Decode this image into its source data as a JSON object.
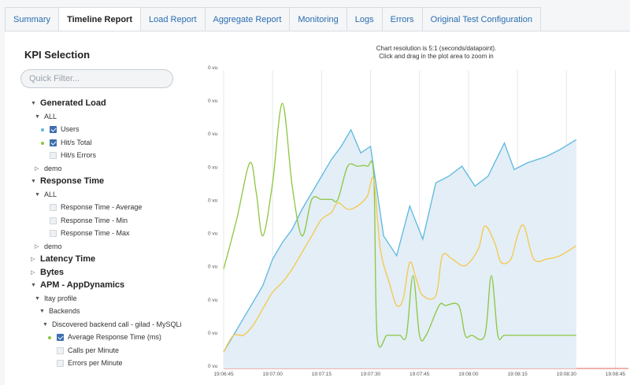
{
  "tabs": [
    {
      "label": "Summary",
      "active": false
    },
    {
      "label": "Timeline Report",
      "active": true
    },
    {
      "label": "Load Report",
      "active": false
    },
    {
      "label": "Aggregate Report",
      "active": false
    },
    {
      "label": "Monitoring",
      "active": false
    },
    {
      "label": "Logs",
      "active": false
    },
    {
      "label": "Errors",
      "active": false
    },
    {
      "label": "Original Test Configuration",
      "active": false
    }
  ],
  "sidebar": {
    "title": "KPI Selection",
    "filter_placeholder": "Quick Filter...",
    "tree": [
      {
        "label": "Generated Load",
        "level": 0,
        "kind": "group",
        "expanded": true
      },
      {
        "label": "ALL",
        "level": 1,
        "kind": "group",
        "expanded": true
      },
      {
        "label": "Users",
        "level": 2,
        "kind": "item",
        "checked": true,
        "dot": "#5bb8e0"
      },
      {
        "label": "Hit/s Total",
        "level": 2,
        "kind": "item",
        "checked": true,
        "dot": "#8cc63f"
      },
      {
        "label": "Hit/s Errors",
        "level": 2,
        "kind": "item",
        "checked": false
      },
      {
        "label": "demo",
        "level": 1,
        "kind": "group",
        "expanded": false
      },
      {
        "label": "Response Time",
        "level": 0,
        "kind": "group",
        "expanded": true
      },
      {
        "label": "ALL",
        "level": 1,
        "kind": "group",
        "expanded": true
      },
      {
        "label": "Response Time - Average",
        "level": 2,
        "kind": "item",
        "checked": false
      },
      {
        "label": "Response Time - Min",
        "level": 2,
        "kind": "item",
        "checked": false
      },
      {
        "label": "Response Time - Max",
        "level": 2,
        "kind": "item",
        "checked": false
      },
      {
        "label": "demo",
        "level": 1,
        "kind": "group",
        "expanded": false
      },
      {
        "label": "Latency Time",
        "level": 0,
        "kind": "group",
        "expanded": false
      },
      {
        "label": "Bytes",
        "level": 0,
        "kind": "group",
        "expanded": false
      },
      {
        "label": "APM - AppDynamics",
        "level": 0,
        "kind": "group",
        "expanded": true
      },
      {
        "label": "Itay profile",
        "level": 1,
        "kind": "group",
        "expanded": true
      },
      {
        "label": "Backends",
        "level": 2,
        "kind": "group",
        "expanded": true
      },
      {
        "label": "Discovered backend call - gilad - MySQLi",
        "level": 3,
        "kind": "group",
        "expanded": true
      },
      {
        "label": "Average Response Time (ms)",
        "level": 4,
        "kind": "item",
        "checked": true,
        "dot": "#8cc63f"
      },
      {
        "label": "Calls per Minute",
        "level": 4,
        "kind": "item",
        "checked": false
      },
      {
        "label": "Errors per Minute",
        "level": 4,
        "kind": "item",
        "checked": false
      }
    ]
  },
  "chart": {
    "note_line1": "Chart resolution is 5:1 (seconds/datapoint).",
    "note_line2": "Click and drag in the plot area to zoom in"
  },
  "chart_data": {
    "type": "line",
    "y_tick_labels": [
      "0 vu",
      "0 vu",
      "0 vu",
      "0 vu",
      "0 vu",
      "0 vu",
      "0 vu",
      "0 vu",
      "0 vu",
      "0 vu"
    ],
    "x_tick_labels": [
      "19:06:45",
      "19:07:00",
      "19:07:15",
      "19:07:30",
      "19:07:45",
      "19:08:00",
      "19:08:15",
      "19:08:30",
      "19:08:45"
    ],
    "x_range": [
      "19:06:45",
      "19:08:49"
    ],
    "y_range": [
      0,
      9
    ],
    "grid": "vertical",
    "series": [
      {
        "color": "#5bb8e0",
        "fill": "#e3eef6",
        "style": "area",
        "points": [
          [
            0,
            0.5
          ],
          [
            3,
            1
          ],
          [
            6,
            1.5
          ],
          [
            9,
            2
          ],
          [
            12,
            2.5
          ],
          [
            15,
            3.3
          ],
          [
            18,
            3.8
          ],
          [
            21,
            4.2
          ],
          [
            24,
            4.8
          ],
          [
            27,
            5.3
          ],
          [
            30,
            5.8
          ],
          [
            33,
            6.3
          ],
          [
            36,
            6.7
          ],
          [
            39,
            7.2
          ],
          [
            42,
            6.5
          ],
          [
            45,
            6.7
          ],
          [
            49,
            4.0
          ],
          [
            53,
            3.4
          ],
          [
            57,
            4.9
          ],
          [
            61,
            3.9
          ],
          [
            65,
            5.6
          ],
          [
            69,
            5.8
          ],
          [
            73,
            6.1
          ],
          [
            77,
            5.5
          ],
          [
            81,
            5.8
          ],
          [
            86,
            6.8
          ],
          [
            89,
            6.0
          ],
          [
            93,
            6.2
          ],
          [
            99,
            6.4
          ],
          [
            103,
            6.6
          ],
          [
            108,
            6.9
          ]
        ]
      },
      {
        "color": "#8cc63f",
        "style": "line",
        "points": [
          [
            0,
            3
          ],
          [
            4,
            4.5
          ],
          [
            8,
            6.2
          ],
          [
            10,
            5.3
          ],
          [
            12,
            4
          ],
          [
            15,
            5.6
          ],
          [
            18,
            8
          ],
          [
            21,
            5.5
          ],
          [
            24,
            4
          ],
          [
            27,
            5.1
          ],
          [
            30,
            5.1
          ],
          [
            33,
            5.1
          ],
          [
            35,
            5.1
          ],
          [
            38,
            6.1
          ],
          [
            41,
            6.1
          ],
          [
            44,
            6.1
          ],
          [
            46,
            5.8
          ],
          [
            47,
            1
          ],
          [
            50,
            1
          ],
          [
            52,
            1
          ],
          [
            54,
            1
          ],
          [
            56,
            1
          ],
          [
            58,
            2.8
          ],
          [
            60,
            1
          ],
          [
            62,
            1
          ],
          [
            66,
            1.9
          ],
          [
            68,
            1.9
          ],
          [
            72,
            1.9
          ],
          [
            74,
            1
          ],
          [
            76,
            1
          ],
          [
            80,
            1
          ],
          [
            82,
            2.8
          ],
          [
            84,
            1
          ],
          [
            86,
            1
          ],
          [
            90,
            1
          ],
          [
            92,
            1
          ],
          [
            94,
            1
          ],
          [
            97,
            1
          ],
          [
            103,
            1
          ],
          [
            108,
            1
          ]
        ]
      },
      {
        "color": "#f5c84a",
        "style": "line",
        "points": [
          [
            0,
            0.5
          ],
          [
            3,
            1
          ],
          [
            6,
            1
          ],
          [
            9,
            1.3
          ],
          [
            12,
            1.8
          ],
          [
            15,
            2.3
          ],
          [
            18,
            2.6
          ],
          [
            21,
            3
          ],
          [
            24,
            3.5
          ],
          [
            27,
            4
          ],
          [
            30,
            4.5
          ],
          [
            33,
            4.7
          ],
          [
            35,
            5
          ],
          [
            38,
            4.8
          ],
          [
            41,
            4.9
          ],
          [
            44,
            5.2
          ],
          [
            46,
            5.7
          ],
          [
            48,
            3.6
          ],
          [
            51,
            2.5
          ],
          [
            53,
            1.9
          ],
          [
            55,
            2.1
          ],
          [
            57,
            3.2
          ],
          [
            59,
            2.7
          ],
          [
            61,
            2.2
          ],
          [
            65,
            2.2
          ],
          [
            67,
            3.4
          ],
          [
            70,
            3.3
          ],
          [
            74,
            3.1
          ],
          [
            78,
            3.6
          ],
          [
            80,
            4.3
          ],
          [
            83,
            3.8
          ],
          [
            85,
            3.2
          ],
          [
            88,
            3.3
          ],
          [
            90,
            4.0
          ],
          [
            92,
            4.3
          ],
          [
            95,
            3.3
          ],
          [
            99,
            3.3
          ],
          [
            103,
            3.4
          ],
          [
            108,
            3.7
          ]
        ]
      }
    ]
  }
}
